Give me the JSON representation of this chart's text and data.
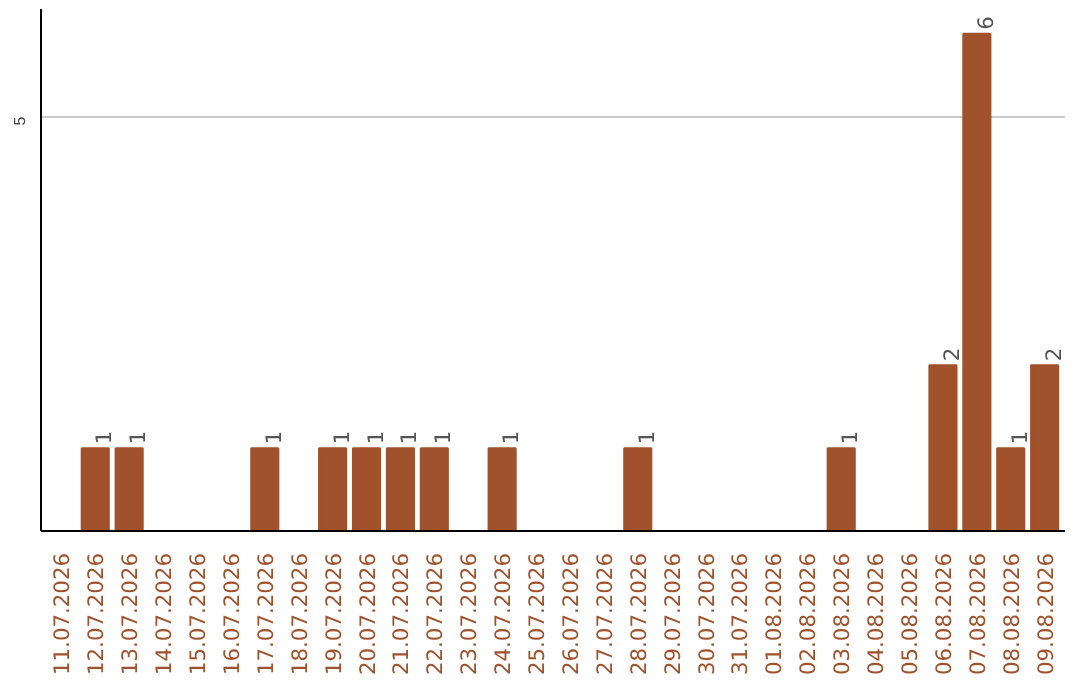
{
  "chart_data": {
    "type": "bar",
    "categories": [
      "11.07.2026",
      "12.07.2026",
      "13.07.2026",
      "14.07.2026",
      "15.07.2026",
      "16.07.2026",
      "17.07.2026",
      "18.07.2026",
      "19.07.2026",
      "20.07.2026",
      "21.07.2026",
      "22.07.2026",
      "23.07.2026",
      "24.07.2026",
      "25.07.2026",
      "26.07.2026",
      "27.07.2026",
      "28.07.2026",
      "29.07.2026",
      "30.07.2026",
      "31.07.2026",
      "01.08.2026",
      "02.08.2026",
      "03.08.2026",
      "04.08.2026",
      "05.08.2026",
      "06.08.2026",
      "07.08.2026",
      "08.08.2026",
      "09.08.2026"
    ],
    "values": [
      0,
      1,
      1,
      0,
      0,
      0,
      1,
      0,
      1,
      1,
      1,
      1,
      0,
      1,
      0,
      0,
      0,
      1,
      0,
      0,
      0,
      0,
      0,
      1,
      0,
      0,
      2,
      6,
      1,
      2
    ],
    "value_labels": [
      null,
      "1",
      "1",
      null,
      null,
      null,
      "1",
      null,
      "1",
      "1",
      "1",
      "1",
      null,
      "1",
      null,
      null,
      null,
      "1",
      null,
      null,
      null,
      null,
      null,
      "1",
      null,
      null,
      "2",
      "6",
      "1",
      "2"
    ],
    "color": "#a0522d",
    "ylim": [
      0,
      6.3
    ],
    "yticks": [
      5
    ],
    "grid": "y"
  }
}
